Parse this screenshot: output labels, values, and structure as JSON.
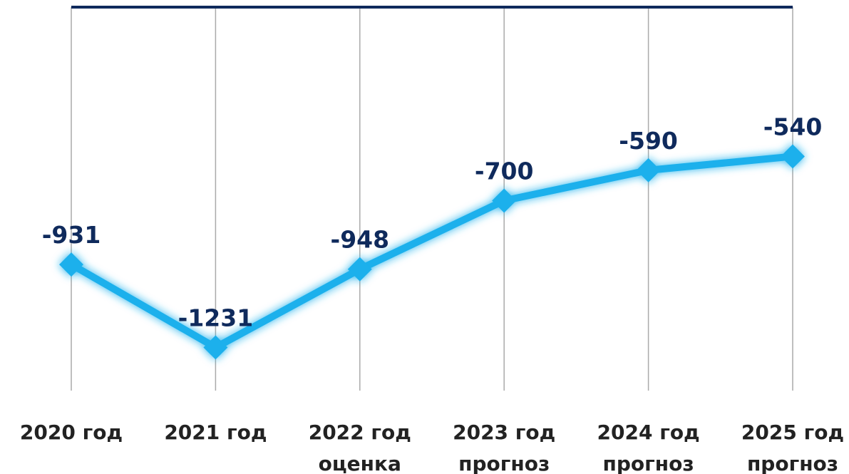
{
  "chart_data": {
    "type": "line",
    "categories": [
      "2020 год",
      "2021 год",
      "2022 год\nоценка",
      "2023 год\nпрогноз",
      "2024 год\nпрогноз",
      "2025 год\nпрогноз"
    ],
    "series": [
      {
        "color": "#1ab0ec",
        "values": [
          -931,
          -1231,
          -948,
          -700,
          -590,
          -540
        ]
      }
    ],
    "ylim": [
      -1400,
      0
    ],
    "grid": true,
    "data_labels": true
  }
}
